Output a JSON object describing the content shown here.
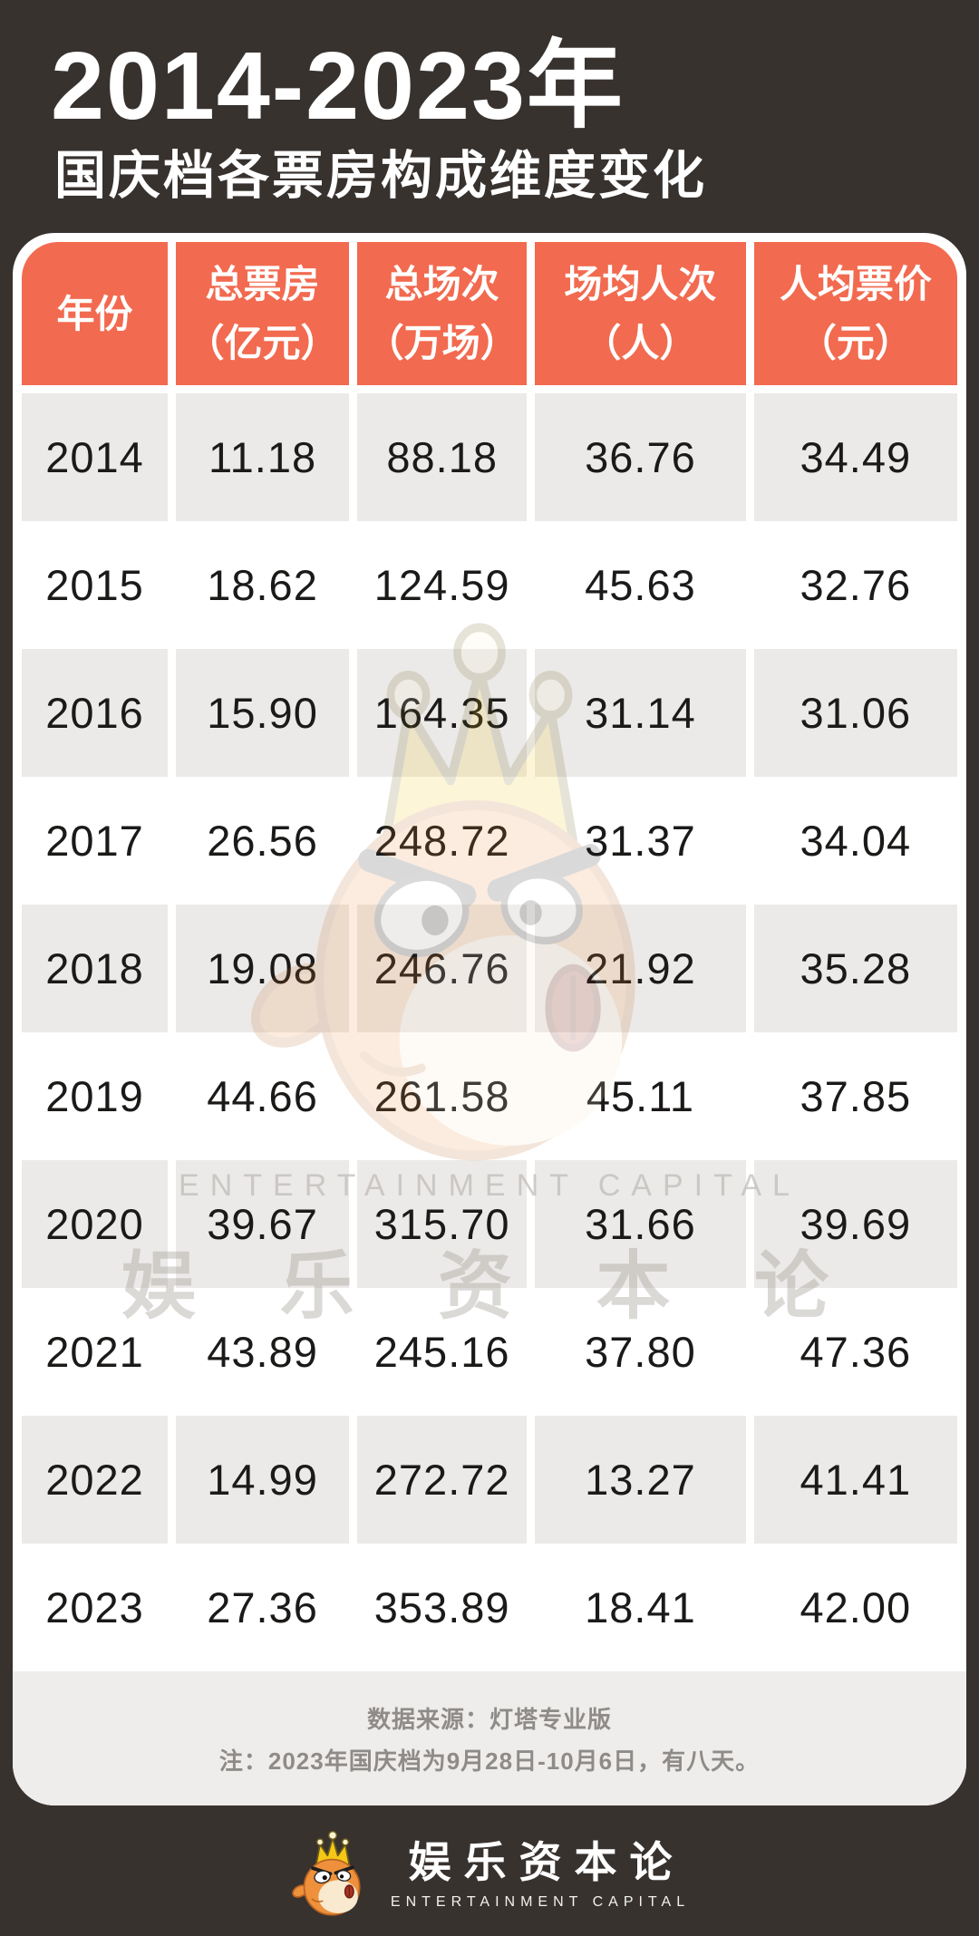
{
  "page": {
    "title": "2014-2023年",
    "subtitle": "国庆档各票房构成维度变化"
  },
  "colors": {
    "background": "#38322F",
    "card": "#FFFFFF",
    "header_accent": "#F26A4F",
    "row_alt": "#ECEAE8",
    "note_band": "#EFEDEB",
    "note_text": "#8E8B88",
    "mascot_orange": "#EF913C",
    "mascot_crown_gold": "#F5C716"
  },
  "table": {
    "header": [
      {
        "line1": "年份",
        "line2": ""
      },
      {
        "line1": "总票房",
        "line2": "（亿元）"
      },
      {
        "line1": "总场次",
        "line2": "（万场）"
      },
      {
        "line1": "场均人次",
        "line2": "（人）"
      },
      {
        "line1": "人均票价",
        "line2": "（元）"
      }
    ]
  },
  "chart_data": {
    "type": "table",
    "title": "2014-2023年 国庆档各票房构成维度变化",
    "columns": [
      "年份",
      "总票房（亿元）",
      "总场次（万场）",
      "场均人次（人）",
      "人均票价（元）"
    ],
    "rows": [
      [
        "2014",
        "11.18",
        "88.18",
        "36.76",
        "34.49"
      ],
      [
        "2015",
        "18.62",
        "124.59",
        "45.63",
        "32.76"
      ],
      [
        "2016",
        "15.90",
        "164.35",
        "31.14",
        "31.06"
      ],
      [
        "2017",
        "26.56",
        "248.72",
        "31.37",
        "34.04"
      ],
      [
        "2018",
        "19.08",
        "246.76",
        "21.92",
        "35.28"
      ],
      [
        "2019",
        "44.66",
        "261.58",
        "45.11",
        "37.85"
      ],
      [
        "2020",
        "39.67",
        "315.70",
        "31.66",
        "39.69"
      ],
      [
        "2021",
        "43.89",
        "245.16",
        "37.80",
        "47.36"
      ],
      [
        "2022",
        "14.99",
        "272.72",
        "13.27",
        "41.41"
      ],
      [
        "2023",
        "27.36",
        "353.89",
        "18.41",
        "42.00"
      ]
    ]
  },
  "notes": {
    "source": "数据来源：灯塔专业版",
    "remark": "注：2023年国庆档为9月28日-10月6日，有八天。"
  },
  "watermark": {
    "en": "ENTERTAINMENT CAPITAL",
    "cn": "娱 乐 资 本 论"
  },
  "brand": {
    "cn": "娱乐资本论",
    "en": "ENTERTAINMENT CAPITAL",
    "mascot": "pufferfish-with-crown"
  }
}
